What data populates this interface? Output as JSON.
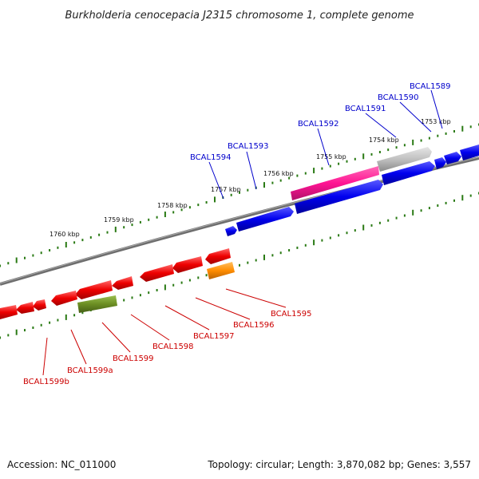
{
  "title": "Burkholderia cenocepacia J2315 chromosome 1, complete genome",
  "footer": {
    "accession": "Accession: NC_011000",
    "summary": "Topology: circular; Length: 3,870,082 bp; Genes: 3,557"
  },
  "colors": {
    "forward": "#0000ee",
    "reverse": "#ee0000",
    "tick": "#2a7a14",
    "backbone": "#7a7a7a",
    "magenta": "#ff1493",
    "gray_feature": "#bbbbbb",
    "olive": "#6b8e23",
    "orange": "#ff8c00"
  },
  "tick_labels": [
    "1753 kbp",
    "1754 kbp",
    "1755 kbp",
    "1756 kbp",
    "1757 kbp",
    "1758 kbp",
    "1759 kbp",
    "1760 kbp"
  ],
  "forward_genes": [
    "BCAL1589",
    "BCAL1590",
    "BCAL1591",
    "BCAL1592",
    "BCAL1593",
    "BCAL1594"
  ],
  "reverse_genes": [
    "BCAL1595",
    "BCAL1596",
    "BCAL1597",
    "BCAL1598",
    "BCAL1599",
    "BCAL1599a",
    "BCAL1599b"
  ]
}
